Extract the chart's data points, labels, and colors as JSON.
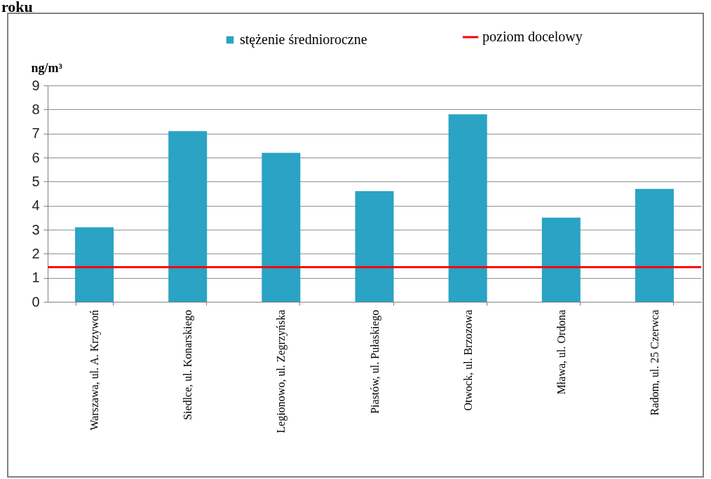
{
  "chart_data": {
    "type": "bar",
    "title": "roku",
    "ylabel": "ng/m³",
    "categories": [
      "Warszawa, ul. A. Krzywoń",
      "Siedlce, ul. Konarskiego",
      "Legionowo, ul. Zegrzyńska",
      "Piastów, ul. Pułaskiego",
      "Otwock, ul. Brzozowa",
      "Mława, ul. Ordona",
      "Radom, ul. 25 Czerwca"
    ],
    "series": [
      {
        "name": "stężenie średnioroczne",
        "color": "#2aa3c4",
        "values": [
          3.1,
          7.1,
          6.2,
          4.6,
          7.8,
          3.5,
          4.7
        ]
      }
    ],
    "ref_lines": [
      {
        "axis": "y",
        "value": 1.44,
        "label": "poziom docelowy",
        "color": "#ff0000"
      }
    ],
    "ylim": [
      0,
      9
    ],
    "yticks": [
      0,
      1,
      2,
      3,
      4,
      5,
      6,
      7,
      8,
      9
    ],
    "grid": "y",
    "legend": "top"
  }
}
